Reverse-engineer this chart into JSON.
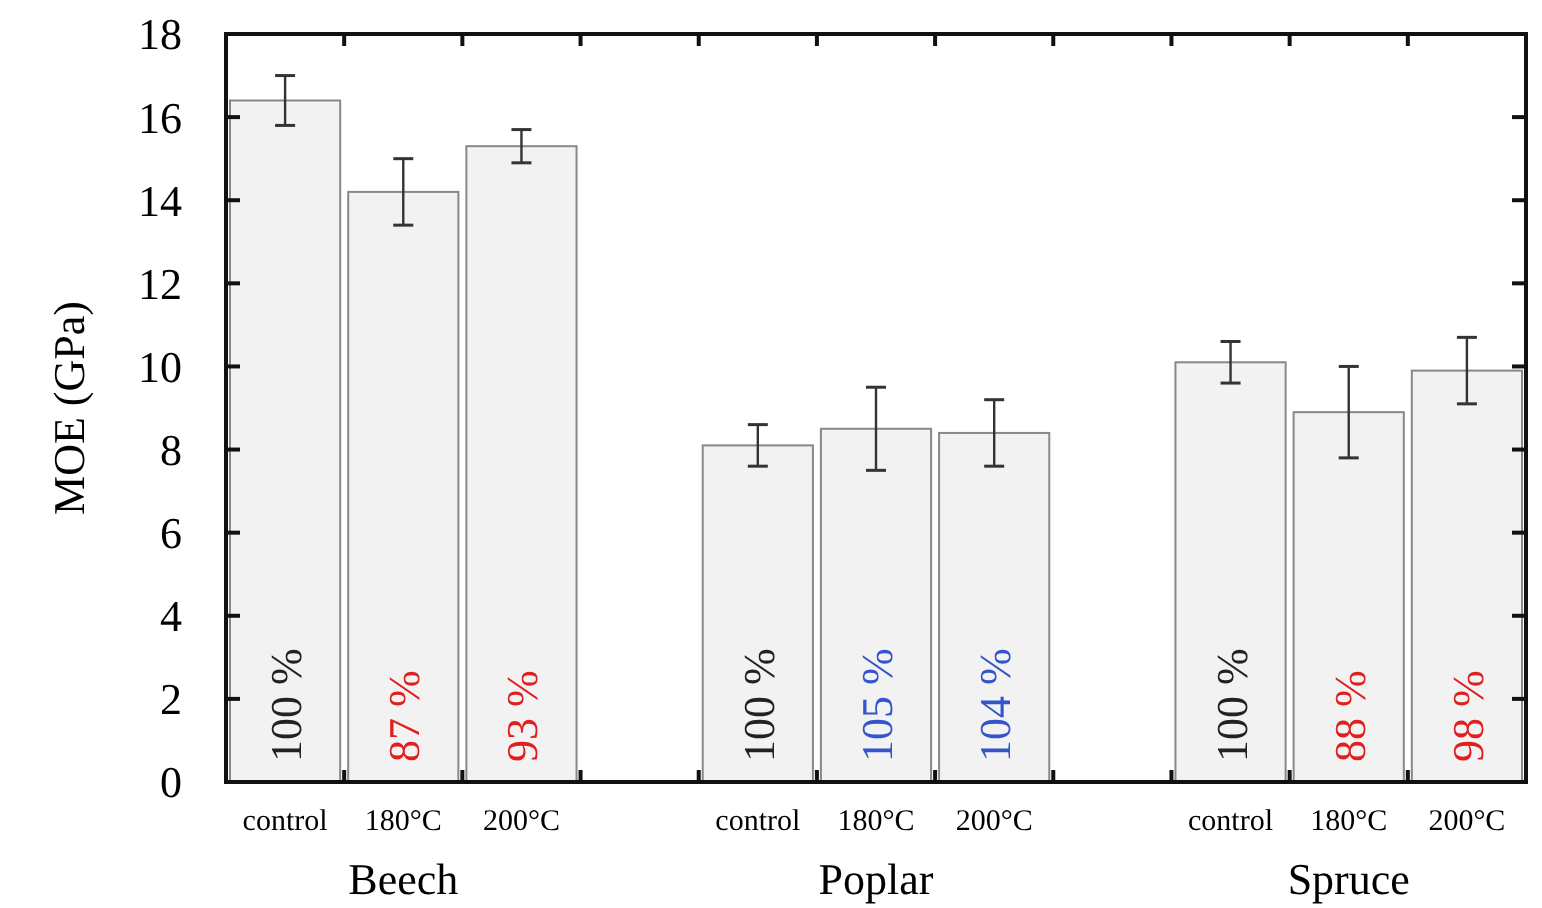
{
  "chart_data": {
    "type": "bar",
    "ylabel": "MOE (GPa)",
    "categories": [
      "Beech",
      "Poplar",
      "Spruce"
    ],
    "series": [
      {
        "name": "control",
        "color": "#f2f2f2",
        "values": [
          16.4,
          8.1,
          10.1
        ],
        "errors": [
          0.6,
          0.5,
          0.5
        ]
      },
      {
        "name": "180°C",
        "color": "#f2f2f2",
        "values": [
          14.2,
          8.5,
          8.9
        ],
        "errors": [
          0.8,
          1.0,
          1.1
        ]
      },
      {
        "name": "200°C",
        "color": "#f2f2f2",
        "values": [
          15.3,
          8.4,
          9.9
        ],
        "errors": [
          0.4,
          0.8,
          0.8
        ]
      }
    ],
    "annotations": [
      "100 %",
      "87 %",
      "93 %",
      "100 %",
      "105 %",
      "104 %",
      "100 %",
      "88 %",
      "98 %"
    ],
    "ylim": [
      0,
      18
    ],
    "yticks": [
      0,
      2,
      4,
      6,
      8,
      10,
      12,
      14,
      16,
      18
    ],
    "grid": false
  }
}
